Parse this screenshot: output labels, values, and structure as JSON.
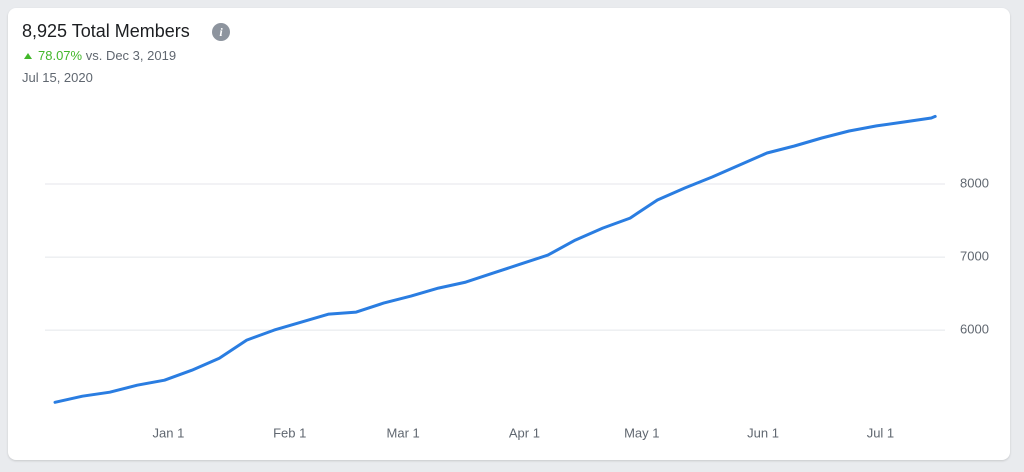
{
  "chart_data": {
    "type": "line",
    "title": "8,925 Total Members",
    "change": "78.07%",
    "comparison": "vs. Dec 3, 2019",
    "date": "Jul 15, 2020",
    "x": [
      "Dec 3",
      "Dec 10",
      "Dec 17",
      "Dec 24",
      "Dec 31",
      "Jan 7",
      "Jan 14",
      "Jan 21",
      "Jan 28",
      "Feb 4",
      "Feb 11",
      "Feb 18",
      "Feb 25",
      "Mar 3",
      "Mar 10",
      "Mar 17",
      "Mar 24",
      "Mar 31",
      "Apr 7",
      "Apr 14",
      "Apr 21",
      "Apr 28",
      "May 5",
      "May 12",
      "May 19",
      "May 26",
      "Jun 2",
      "Jun 9",
      "Jun 16",
      "Jun 23",
      "Jun 30",
      "Jul 7",
      "Jul 14",
      "Jul 15"
    ],
    "values": [
      5012,
      5096,
      5150,
      5247,
      5315,
      5452,
      5616,
      5863,
      6000,
      6110,
      6219,
      6247,
      6370,
      6466,
      6575,
      6658,
      6781,
      6904,
      7027,
      7233,
      7397,
      7534,
      7781,
      7945,
      8096,
      8260,
      8425,
      8521,
      8630,
      8726,
      8795,
      8849,
      8904,
      8925
    ],
    "color": "#2a7de1",
    "xticks": [
      "Jan 1",
      "Feb 1",
      "Mar 1",
      "Apr 1",
      "May 1",
      "Jun 1",
      "Jul 1"
    ],
    "ylim": [
      4770,
      9150
    ],
    "yticks": [
      6000,
      7000,
      8000
    ],
    "grid": true
  }
}
